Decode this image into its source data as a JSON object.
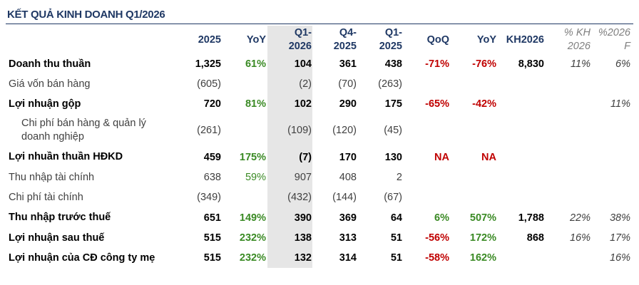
{
  "title": "KẾT QUẢ KINH DOANH Q1/2026",
  "table": {
    "columns": [
      "2025",
      "YoY",
      "Q1-2026",
      "Q4-2025",
      "Q1-2025",
      "QoQ",
      "YoY",
      "KH2026",
      "% KH 2026",
      "%2026 F"
    ],
    "rows": [
      [
        "Doanh thu thuần",
        "1,325",
        "61%",
        "104",
        "361",
        "438",
        "-71%",
        "-76%",
        "8,830",
        "11%",
        "6%"
      ],
      [
        "Giá vốn bán hàng",
        "(605)",
        null,
        "(2)",
        "(70)",
        "(263)",
        null,
        null,
        null,
        null,
        null
      ],
      [
        "Lợi nhuận gộp",
        "720",
        "81%",
        "102",
        "290",
        "175",
        "-65%",
        "-42%",
        null,
        null,
        "11%"
      ],
      [
        "Chi phí bán hàng & quản lý doanh nghiệp",
        "(261)",
        null,
        "(109)",
        "(120)",
        "(45)",
        null,
        null,
        null,
        null,
        null
      ],
      [
        "Lợi nhuần thuần HĐKD",
        "459",
        "175%",
        "(7)",
        "170",
        "130",
        "NA",
        "NA",
        null,
        null,
        null
      ],
      [
        "Thu nhập tài chính",
        "638",
        "59%",
        "907",
        "408",
        "2",
        null,
        null,
        null,
        null,
        null
      ],
      [
        "Chi phí tài chính",
        "(349)",
        null,
        "(432)",
        "(144)",
        "(67)",
        null,
        null,
        null,
        null,
        null
      ],
      [
        "Thu nhập trước thuế",
        "651",
        "149%",
        "390",
        "369",
        "64",
        "6%",
        "507%",
        "1,788",
        "22%",
        "38%"
      ],
      [
        "Lợi nhuận sau thuế",
        "515",
        "232%",
        "138",
        "313",
        "51",
        "-56%",
        "172%",
        "868",
        "16%",
        "17%"
      ],
      [
        "Lợi nhuận của CĐ công ty mẹ",
        "515",
        "232%",
        "132",
        "314",
        "51",
        "-58%",
        "162%",
        null,
        null,
        "16%"
      ]
    ]
  }
}
